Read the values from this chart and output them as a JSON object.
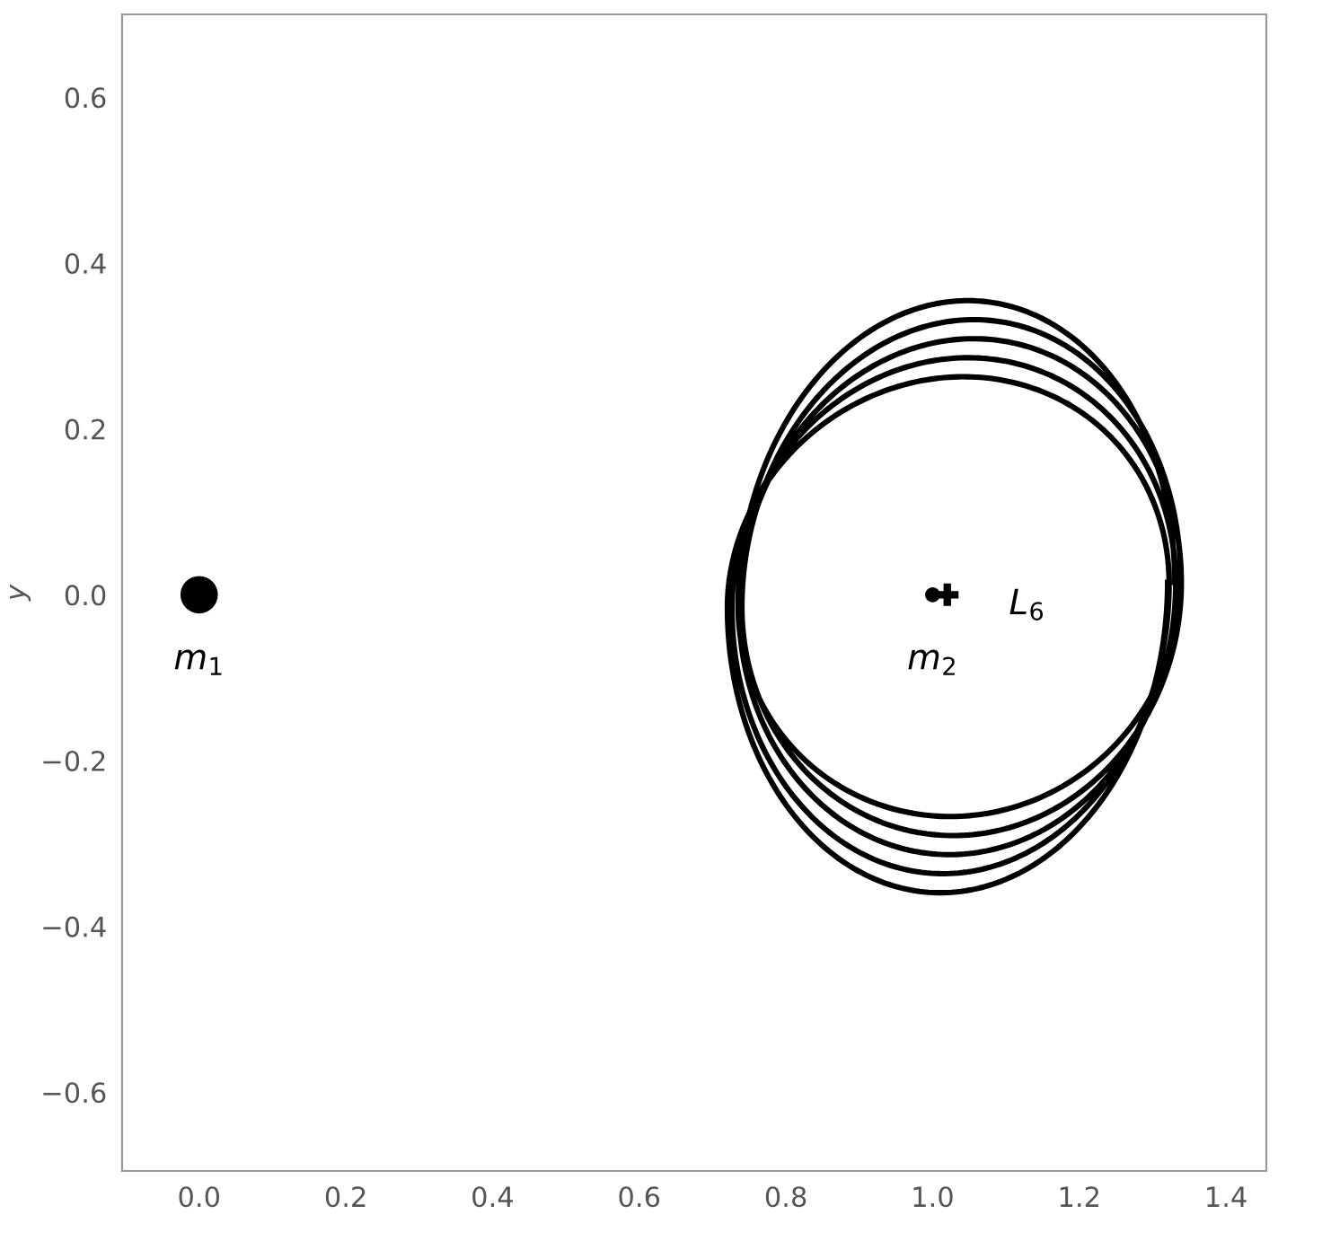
{
  "chart_data": {
    "type": "scatter",
    "ylabel": "y",
    "xlim": [
      -0.105,
      1.455
    ],
    "ylim": [
      -0.695,
      0.7
    ],
    "xticks": [
      {
        "value": 0.0,
        "label": "0.0"
      },
      0.2,
      0.4,
      0.6,
      0.8,
      {
        "value": 1.0,
        "label": "1.0"
      },
      1.2,
      1.4
    ],
    "yticks": [
      {
        "value": -0.6,
        "label": "−0.6"
      },
      {
        "value": -0.4,
        "label": "−0.4"
      },
      {
        "value": -0.2,
        "label": "−0.2"
      },
      {
        "value": 0.0,
        "label": "0.0"
      },
      0.2,
      0.4,
      0.6
    ],
    "grid": false,
    "legend": false,
    "series": [
      {
        "color": "#000000",
        "marker": "circle",
        "x": [
          0.0
        ],
        "values": [
          0.0
        ]
      },
      {
        "color": "#000000",
        "marker": "circle",
        "x": [
          1.0
        ],
        "values": [
          0.0
        ]
      },
      {
        "color": "#000000",
        "marker": "cross",
        "x": [
          1.02
        ],
        "values": [
          0.0
        ]
      }
    ],
    "annotations": [
      "m$_{1}$",
      "m$_{2}$",
      "L$_{6}$"
    ]
  }
}
